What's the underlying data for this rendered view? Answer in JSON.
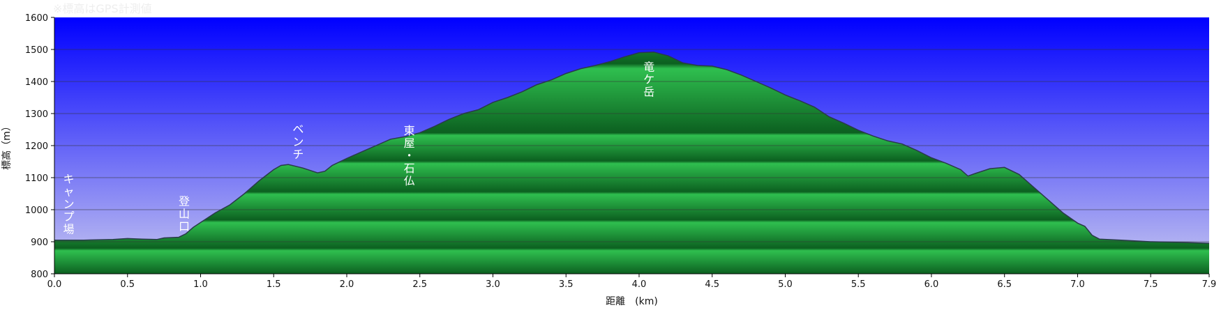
{
  "note": "※標高はGPS計測値",
  "colors": {
    "sky_top": "#0000ff",
    "sky_bottom": "#c8c8f0",
    "terrain_light": "#2fbf4f",
    "terrain_dark": "#0c6020",
    "outline": "#2a3a4a",
    "gridline": "#333333"
  },
  "chart_data": {
    "type": "area",
    "title": "",
    "xlabel": "距離　(km)",
    "ylabel": "標高（m）",
    "xlim": [
      0,
      7.9
    ],
    "ylim": [
      800,
      1600
    ],
    "grid": true,
    "x_ticks": [
      "0.0",
      "0.5",
      "1.0",
      "1.5",
      "2.0",
      "2.5",
      "3.0",
      "3.5",
      "4.0",
      "4.5",
      "5.0",
      "5.5",
      "6.0",
      "6.5",
      "7.0",
      "7.5",
      "7.9"
    ],
    "y_ticks": [
      "800",
      "900",
      "1000",
      "1100",
      "1200",
      "1300",
      "1400",
      "1500",
      "1600"
    ],
    "series": [
      {
        "x": [
          0.0,
          0.2,
          0.4,
          0.5,
          0.6,
          0.7,
          0.75,
          0.85,
          0.9,
          0.95,
          1.0,
          1.1,
          1.2,
          1.3,
          1.4,
          1.5,
          1.55,
          1.6,
          1.7,
          1.8,
          1.85,
          1.9,
          2.0,
          2.1,
          2.2,
          2.3,
          2.4,
          2.5,
          2.6,
          2.7,
          2.8,
          2.9,
          3.0,
          3.1,
          3.2,
          3.3,
          3.4,
          3.5,
          3.6,
          3.7,
          3.8,
          3.9,
          4.0,
          4.1,
          4.2,
          4.3,
          4.4,
          4.5,
          4.6,
          4.7,
          4.8,
          4.9,
          5.0,
          5.1,
          5.2,
          5.3,
          5.4,
          5.5,
          5.6,
          5.7,
          5.8,
          5.9,
          6.0,
          6.1,
          6.2,
          6.25,
          6.3,
          6.4,
          6.5,
          6.6,
          6.7,
          6.8,
          6.9,
          7.0,
          7.05,
          7.1,
          7.15,
          7.3,
          7.5,
          7.7,
          7.9
        ],
        "y": [
          905,
          905,
          907,
          910,
          908,
          907,
          912,
          914,
          925,
          945,
          960,
          990,
          1015,
          1050,
          1090,
          1125,
          1138,
          1141,
          1130,
          1115,
          1120,
          1138,
          1160,
          1180,
          1200,
          1220,
          1228,
          1240,
          1260,
          1282,
          1300,
          1312,
          1335,
          1350,
          1368,
          1390,
          1405,
          1425,
          1440,
          1450,
          1462,
          1477,
          1490,
          1492,
          1480,
          1458,
          1450,
          1448,
          1437,
          1420,
          1400,
          1380,
          1358,
          1340,
          1320,
          1290,
          1270,
          1248,
          1230,
          1215,
          1205,
          1185,
          1162,
          1145,
          1125,
          1105,
          1113,
          1128,
          1132,
          1110,
          1070,
          1030,
          990,
          958,
          948,
          920,
          908,
          905,
          900,
          898,
          895
        ]
      }
    ],
    "annotations": [
      {
        "text": "キャンプ場",
        "x": 0.05
      },
      {
        "text": "登山口",
        "x": 0.84
      },
      {
        "text": "ベンチ",
        "x": 1.62
      },
      {
        "text": "東屋・石仏",
        "x": 2.38
      },
      {
        "text": "竜ケ岳",
        "x": 4.02
      }
    ]
  }
}
